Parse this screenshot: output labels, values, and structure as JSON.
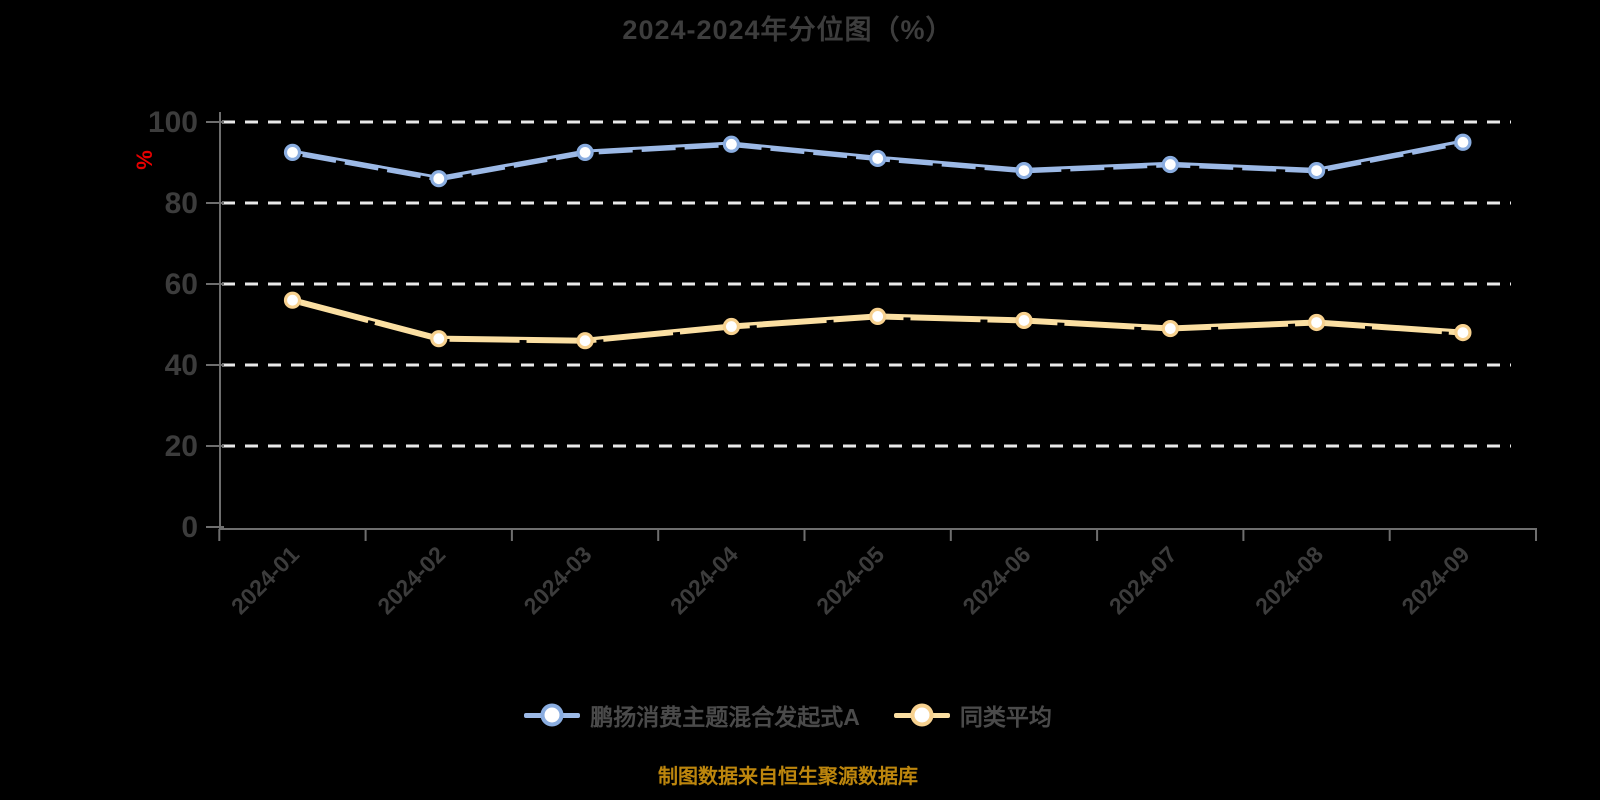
{
  "title": "2024-2024年分位图（%）",
  "footer": "制图数据来自恒生聚源数据库",
  "chart_data": {
    "type": "line",
    "title": "2024-2024年分位图（%）",
    "categories": [
      "2024-01",
      "2024-02",
      "2024-03",
      "2024-04",
      "2024-05",
      "2024-06",
      "2024-07",
      "2024-08",
      "2024-09"
    ],
    "series": [
      {
        "name": "鹏扬消费主题混合发起式A",
        "color": "#9cb9e6",
        "marker_border": "#8aade0",
        "values": [
          92.5,
          86,
          92.5,
          94.5,
          91,
          88,
          89.5,
          88,
          95
        ]
      },
      {
        "name": "同类平均",
        "color": "#fbdfa2",
        "marker_border": "#f7d18f",
        "values": [
          56,
          46.5,
          46,
          49.5,
          52,
          51,
          49,
          50.5,
          48
        ]
      }
    ],
    "xlabel": "",
    "ylabel": "%",
    "ylim": [
      0,
      100
    ],
    "yticks": [
      0,
      20,
      40,
      60,
      80,
      100
    ],
    "grid": "dashed-horizontal",
    "legend_position": "bottom"
  },
  "colors": {
    "background": "#000000",
    "title_text": "#3d3d3d",
    "axis_line": "#6e6e6e",
    "tick_label": "#3c3c3c",
    "gridline": "#e9e9e9",
    "y_unit_label": "#e60000",
    "legend_text": "#4a4a4a",
    "footer_text": "#bd860d"
  }
}
